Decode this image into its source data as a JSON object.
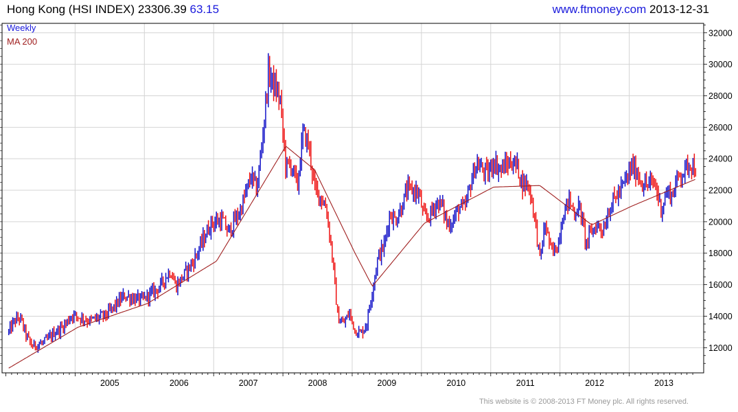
{
  "header": {
    "title": "Hong Kong (HSI INDEX)",
    "last": "23306.39",
    "change": "63.15",
    "site": "www.ftmoney.com",
    "date": "2013-12-31"
  },
  "footer": {
    "copyright": "This website is © 2008-2013 FT Money plc. All rights reserved."
  },
  "colors": {
    "up": "#1212c8",
    "down": "#ee1111",
    "ma": "#a02020",
    "grid": "#d4d4d4",
    "axis": "#000000",
    "legend_weekly": "#1a1adc",
    "legend_ma": "#a02020"
  },
  "chart_data": {
    "type": "line",
    "subtype": "ohlc-weekly-bars",
    "legend": [
      "Weekly",
      "MA 200"
    ],
    "y_ticks": [
      12000,
      14000,
      16000,
      18000,
      20000,
      22000,
      24000,
      26000,
      28000,
      30000,
      32000
    ],
    "x_ticks": [
      "2005",
      "2006",
      "2007",
      "2008",
      "2009",
      "2010",
      "2011",
      "2012",
      "2013"
    ],
    "xlim": [
      "2004-01",
      "2013-12"
    ],
    "ylim": [
      10400,
      32600
    ],
    "grid": true,
    "y_axis_side": "right",
    "series": [
      {
        "name": "Weekly",
        "x": [
          "2004-01",
          "2004-02",
          "2004-03",
          "2004-04",
          "2004-05",
          "2004-06",
          "2004-07",
          "2004-08",
          "2004-09",
          "2004-10",
          "2004-11",
          "2004-12",
          "2005-03",
          "2005-06",
          "2005-09",
          "2005-12",
          "2006-03",
          "2006-05",
          "2006-06",
          "2006-09",
          "2006-12",
          "2007-02",
          "2007-03",
          "2007-05",
          "2007-07",
          "2007-08",
          "2007-09",
          "2007-10",
          "2007-11",
          "2007-12",
          "2008-01",
          "2008-02",
          "2008-03",
          "2008-04",
          "2008-05",
          "2008-06",
          "2008-07",
          "2008-08",
          "2008-09",
          "2008-10",
          "2008-11",
          "2008-12",
          "2009-01",
          "2009-02",
          "2009-03",
          "2009-04",
          "2009-05",
          "2009-06",
          "2009-07",
          "2009-08",
          "2009-09",
          "2009-10",
          "2009-11",
          "2009-12",
          "2010-01",
          "2010-02",
          "2010-03",
          "2010-04",
          "2010-05",
          "2010-06",
          "2010-07",
          "2010-08",
          "2010-09",
          "2010-10",
          "2010-11",
          "2010-12",
          "2011-01",
          "2011-02",
          "2011-03",
          "2011-04",
          "2011-05",
          "2011-06",
          "2011-07",
          "2011-08",
          "2011-09",
          "2011-10",
          "2011-11",
          "2011-12",
          "2012-01",
          "2012-02",
          "2012-03",
          "2012-04",
          "2012-05",
          "2012-06",
          "2012-07",
          "2012-08",
          "2012-09",
          "2012-10",
          "2012-11",
          "2012-12",
          "2013-01",
          "2013-02",
          "2013-03",
          "2013-04",
          "2013-05",
          "2013-06",
          "2013-07",
          "2013-08",
          "2013-09",
          "2013-10",
          "2013-11",
          "2013-12"
        ],
        "y": [
          13000,
          13700,
          13900,
          12800,
          12100,
          12200,
          12300,
          12600,
          13000,
          13200,
          13600,
          14100,
          13700,
          14100,
          15300,
          15000,
          15800,
          16900,
          15900,
          17500,
          19900,
          20100,
          19300,
          20600,
          22900,
          22000,
          25500,
          29500,
          28600,
          27800,
          23500,
          23600,
          22200,
          25700,
          24800,
          22100,
          21600,
          20900,
          18000,
          13900,
          13500,
          14200,
          13100,
          12900,
          13500,
          15700,
          17800,
          18400,
          20500,
          20100,
          20900,
          22000,
          22000,
          21800,
          20200,
          20400,
          21200,
          21100,
          19800,
          20100,
          20900,
          20800,
          22400,
          23700,
          23300,
          23000,
          23900,
          23300,
          23500,
          23800,
          23600,
          22400,
          22400,
          20600,
          17600,
          19900,
          18000,
          18400,
          20400,
          21400,
          20600,
          20900,
          18600,
          19400,
          19800,
          19500,
          20800,
          21500,
          22000,
          22700,
          23500,
          23000,
          22300,
          22400,
          22400,
          20800,
          21900,
          21700,
          22900,
          23200,
          23800,
          23306.39
        ]
      },
      {
        "name": "MA 200",
        "x": [
          "2004-01",
          "2005-01",
          "2006-01",
          "2007-01",
          "2008-01",
          "2008-06",
          "2009-01",
          "2009-04",
          "2010-01",
          "2011-01",
          "2011-09",
          "2012-06",
          "2013-01",
          "2013-12"
        ],
        "y": [
          10700,
          13300,
          14800,
          17500,
          24800,
          23300,
          18000,
          15900,
          19900,
          22200,
          22300,
          19800,
          21000,
          22700
        ]
      }
    ]
  }
}
